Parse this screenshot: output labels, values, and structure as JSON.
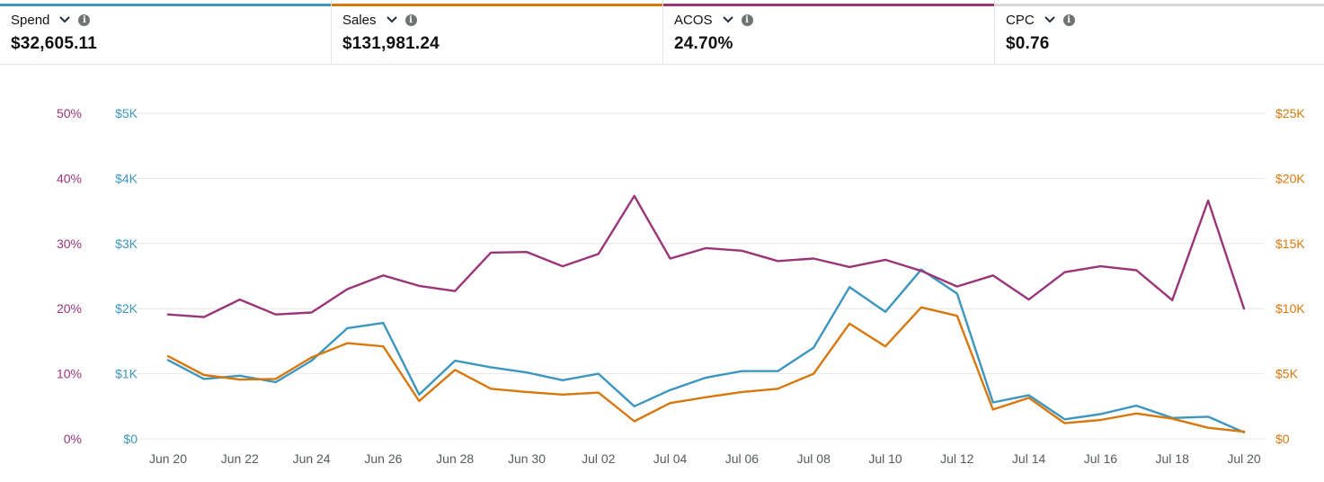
{
  "metrics": [
    {
      "label": "Spend",
      "value": "$32,605.11",
      "color": "#3c96bd"
    },
    {
      "label": "Sales",
      "value": "$131,981.24",
      "color": "#d6780e"
    },
    {
      "label": "ACOS",
      "value": "24.70%",
      "color": "#9b3579"
    },
    {
      "label": "CPC",
      "value": "$0.76",
      "color": "#d5d9d9"
    }
  ],
  "icons": {
    "dropdown": "chevron-down-icon",
    "info": "info-icon",
    "info_glyph": "i"
  },
  "chart_data": {
    "type": "line",
    "x": [
      "Jun 20",
      "Jun 21",
      "Jun 22",
      "Jun 23",
      "Jun 24",
      "Jun 25",
      "Jun 26",
      "Jun 27",
      "Jun 28",
      "Jun 29",
      "Jun 30",
      "Jul 01",
      "Jul 02",
      "Jul 03",
      "Jul 04",
      "Jul 05",
      "Jul 06",
      "Jul 07",
      "Jul 08",
      "Jul 09",
      "Jul 10",
      "Jul 11",
      "Jul 12",
      "Jul 13",
      "Jul 14",
      "Jul 15",
      "Jul 16",
      "Jul 17",
      "Jul 18",
      "Jul 19",
      "Jul 20"
    ],
    "x_tick_labels": [
      "Jun 20",
      "Jun 22",
      "Jun 24",
      "Jun 26",
      "Jun 28",
      "Jun 30",
      "Jul 02",
      "Jul 04",
      "Jul 06",
      "Jul 08",
      "Jul 10",
      "Jul 12",
      "Jul 14",
      "Jul 16",
      "Jul 18",
      "Jul 20"
    ],
    "axes": {
      "acos": {
        "side": "left-outer",
        "ticks": [
          "0%",
          "10%",
          "20%",
          "30%",
          "40%",
          "50%"
        ],
        "range": [
          0,
          50
        ],
        "color": "#9b3579"
      },
      "spend": {
        "side": "left-inner",
        "ticks": [
          "$0",
          "$1K",
          "$2K",
          "$3K",
          "$4K",
          "$5K"
        ],
        "range": [
          0,
          5000
        ],
        "color": "#3c96bd"
      },
      "sales": {
        "side": "right",
        "ticks": [
          "$0",
          "$5K",
          "$10K",
          "$15K",
          "$20K",
          "$25K"
        ],
        "range": [
          0,
          25000
        ],
        "color": "#d6780e"
      }
    },
    "grid": true,
    "series": [
      {
        "name": "Spend",
        "axis": "spend",
        "color": "#3c96bd",
        "values": [
          1210,
          920,
          970,
          870,
          1200,
          1700,
          1780,
          680,
          1200,
          1100,
          1020,
          900,
          1000,
          500,
          750,
          940,
          1040,
          1040,
          1400,
          2330,
          1950,
          2600,
          2230,
          560,
          670,
          300,
          380,
          510,
          320,
          340,
          100
        ]
      },
      {
        "name": "Sales",
        "axis": "sales",
        "color": "#d6780e",
        "values": [
          6350,
          4900,
          4550,
          4600,
          6250,
          7350,
          7100,
          2900,
          5300,
          3850,
          3600,
          3400,
          3550,
          1350,
          2750,
          3200,
          3600,
          3850,
          5000,
          8850,
          7100,
          10100,
          9450,
          2250,
          3150,
          1200,
          1450,
          1950,
          1550,
          850,
          550
        ]
      },
      {
        "name": "ACOS",
        "axis": "acos",
        "color": "#9b3579",
        "values": [
          19.1,
          18.7,
          21.4,
          19.1,
          19.4,
          23.0,
          25.1,
          23.5,
          22.7,
          28.6,
          28.7,
          26.5,
          28.4,
          37.3,
          27.7,
          29.3,
          28.9,
          27.3,
          27.7,
          26.4,
          27.5,
          25.8,
          23.4,
          25.1,
          21.4,
          25.6,
          26.5,
          25.9,
          21.3,
          36.6,
          20.0
        ]
      }
    ]
  }
}
